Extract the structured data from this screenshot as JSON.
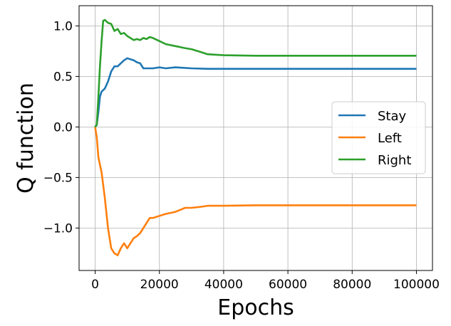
{
  "chart_data": {
    "type": "line",
    "xlabel": "Epochs",
    "ylabel": "Q function",
    "xlim": [
      -5000,
      105000
    ],
    "ylim": [
      -1.42,
      1.2
    ],
    "x_ticks": [
      0,
      20000,
      40000,
      60000,
      80000,
      100000
    ],
    "x_tick_labels": [
      "0",
      "20000",
      "40000",
      "60000",
      "80000",
      "100000"
    ],
    "y_ticks": [
      -1.0,
      -0.5,
      0.0,
      0.5,
      1.0
    ],
    "y_tick_labels": [
      "−1.0",
      "−0.5",
      "0.0",
      "0.5",
      "1.0"
    ],
    "grid": true,
    "legend_position": "center-right",
    "series": [
      {
        "name": "Stay",
        "color": "#1f77b4",
        "points": [
          [
            0,
            0.0
          ],
          [
            500,
            0.02
          ],
          [
            1000,
            0.15
          ],
          [
            1500,
            0.3
          ],
          [
            2000,
            0.35
          ],
          [
            3000,
            0.38
          ],
          [
            4000,
            0.45
          ],
          [
            5000,
            0.55
          ],
          [
            6000,
            0.6
          ],
          [
            7000,
            0.6
          ],
          [
            8000,
            0.63
          ],
          [
            9000,
            0.66
          ],
          [
            10000,
            0.68
          ],
          [
            11000,
            0.67
          ],
          [
            12000,
            0.66
          ],
          [
            13000,
            0.64
          ],
          [
            14000,
            0.63
          ],
          [
            15000,
            0.58
          ],
          [
            16000,
            0.58
          ],
          [
            18000,
            0.58
          ],
          [
            20000,
            0.59
          ],
          [
            22000,
            0.58
          ],
          [
            25000,
            0.59
          ],
          [
            30000,
            0.58
          ],
          [
            35000,
            0.575
          ],
          [
            40000,
            0.575
          ],
          [
            50000,
            0.575
          ],
          [
            60000,
            0.575
          ],
          [
            70000,
            0.575
          ],
          [
            80000,
            0.575
          ],
          [
            90000,
            0.575
          ],
          [
            100000,
            0.575
          ]
        ]
      },
      {
        "name": "Left",
        "color": "#ff7f0e",
        "points": [
          [
            0,
            0.0
          ],
          [
            500,
            -0.1
          ],
          [
            1000,
            -0.3
          ],
          [
            2000,
            -0.45
          ],
          [
            3000,
            -0.7
          ],
          [
            4000,
            -1.0
          ],
          [
            5000,
            -1.2
          ],
          [
            6000,
            -1.25
          ],
          [
            7000,
            -1.27
          ],
          [
            8000,
            -1.2
          ],
          [
            9000,
            -1.15
          ],
          [
            10000,
            -1.2
          ],
          [
            11000,
            -1.15
          ],
          [
            12000,
            -1.1
          ],
          [
            13000,
            -1.08
          ],
          [
            14000,
            -1.05
          ],
          [
            15000,
            -1.0
          ],
          [
            16000,
            -0.95
          ],
          [
            17000,
            -0.9
          ],
          [
            18000,
            -0.9
          ],
          [
            20000,
            -0.88
          ],
          [
            22000,
            -0.86
          ],
          [
            25000,
            -0.84
          ],
          [
            28000,
            -0.8
          ],
          [
            30000,
            -0.8
          ],
          [
            33000,
            -0.79
          ],
          [
            35000,
            -0.78
          ],
          [
            40000,
            -0.78
          ],
          [
            50000,
            -0.775
          ],
          [
            60000,
            -0.775
          ],
          [
            70000,
            -0.775
          ],
          [
            80000,
            -0.775
          ],
          [
            90000,
            -0.775
          ],
          [
            100000,
            -0.775
          ]
        ]
      },
      {
        "name": "Right",
        "color": "#2ca02c",
        "points": [
          [
            0,
            0.0
          ],
          [
            500,
            0.02
          ],
          [
            1000,
            0.3
          ],
          [
            1500,
            0.6
          ],
          [
            2000,
            0.85
          ],
          [
            2500,
            1.05
          ],
          [
            3000,
            1.06
          ],
          [
            4000,
            1.03
          ],
          [
            5000,
            1.02
          ],
          [
            6000,
            0.95
          ],
          [
            7000,
            0.97
          ],
          [
            8000,
            0.92
          ],
          [
            9000,
            0.93
          ],
          [
            10000,
            0.9
          ],
          [
            11000,
            0.88
          ],
          [
            12000,
            0.86
          ],
          [
            13000,
            0.87
          ],
          [
            14000,
            0.86
          ],
          [
            15000,
            0.88
          ],
          [
            16000,
            0.87
          ],
          [
            17000,
            0.89
          ],
          [
            18000,
            0.88
          ],
          [
            20000,
            0.85
          ],
          [
            22000,
            0.82
          ],
          [
            25000,
            0.8
          ],
          [
            28000,
            0.78
          ],
          [
            30000,
            0.77
          ],
          [
            33000,
            0.74
          ],
          [
            35000,
            0.72
          ],
          [
            40000,
            0.71
          ],
          [
            50000,
            0.705
          ],
          [
            60000,
            0.705
          ],
          [
            70000,
            0.705
          ],
          [
            80000,
            0.705
          ],
          [
            90000,
            0.705
          ],
          [
            100000,
            0.705
          ]
        ]
      }
    ]
  }
}
